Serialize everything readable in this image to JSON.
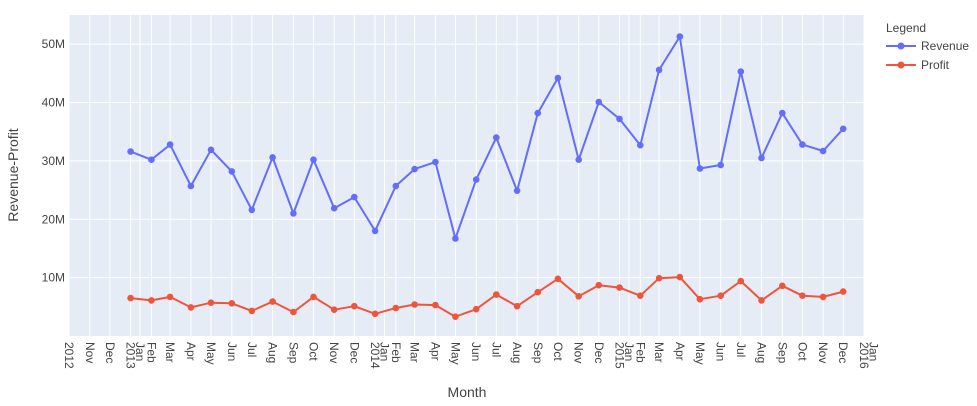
{
  "chart_data": {
    "type": "line",
    "title": "",
    "xlabel": "Month",
    "ylabel": "Revenue-Profit",
    "legend": {
      "title": "Legend",
      "placement": "top-right"
    },
    "x_range": [
      "2012-10-01",
      "2016-01-01"
    ],
    "ylim": [
      0,
      55
    ],
    "y_unit": "M",
    "grid": true,
    "y_ticks": [
      {
        "value": 10,
        "label": "10M"
      },
      {
        "value": 20,
        "label": "20M"
      },
      {
        "value": 30,
        "label": "30M"
      },
      {
        "value": 40,
        "label": "40M"
      },
      {
        "value": 50,
        "label": "50M"
      }
    ],
    "x_ticks": [
      {
        "date": "2012-10-01",
        "label": "2012"
      },
      {
        "date": "2012-11-01",
        "label": "Nov"
      },
      {
        "date": "2012-12-01",
        "label": "Dec"
      },
      {
        "date": "2013-01-01",
        "label": "2013"
      },
      {
        "date": "2013-01-15",
        "label": "Jan"
      },
      {
        "date": "2013-02-01",
        "label": "Feb"
      },
      {
        "date": "2013-03-01",
        "label": "Mar"
      },
      {
        "date": "2013-04-01",
        "label": "Apr"
      },
      {
        "date": "2013-05-01",
        "label": "May"
      },
      {
        "date": "2013-06-01",
        "label": "Jun"
      },
      {
        "date": "2013-07-01",
        "label": "Jul"
      },
      {
        "date": "2013-08-01",
        "label": "Aug"
      },
      {
        "date": "2013-09-01",
        "label": "Sep"
      },
      {
        "date": "2013-10-01",
        "label": "Oct"
      },
      {
        "date": "2013-11-01",
        "label": "Nov"
      },
      {
        "date": "2013-12-01",
        "label": "Dec"
      },
      {
        "date": "2014-01-01",
        "label": "2014"
      },
      {
        "date": "2014-01-15",
        "label": "Jan"
      },
      {
        "date": "2014-02-01",
        "label": "Feb"
      },
      {
        "date": "2014-03-01",
        "label": "Mar"
      },
      {
        "date": "2014-04-01",
        "label": "Apr"
      },
      {
        "date": "2014-05-01",
        "label": "May"
      },
      {
        "date": "2014-06-01",
        "label": "Jun"
      },
      {
        "date": "2014-07-01",
        "label": "Jul"
      },
      {
        "date": "2014-08-01",
        "label": "Aug"
      },
      {
        "date": "2014-09-01",
        "label": "Sep"
      },
      {
        "date": "2014-10-01",
        "label": "Oct"
      },
      {
        "date": "2014-11-01",
        "label": "Nov"
      },
      {
        "date": "2014-12-01",
        "label": "Dec"
      },
      {
        "date": "2015-01-01",
        "label": "2015"
      },
      {
        "date": "2015-01-15",
        "label": "Jan"
      },
      {
        "date": "2015-02-01",
        "label": "Feb"
      },
      {
        "date": "2015-03-01",
        "label": "Mar"
      },
      {
        "date": "2015-04-01",
        "label": "Apr"
      },
      {
        "date": "2015-05-01",
        "label": "May"
      },
      {
        "date": "2015-06-01",
        "label": "Jun"
      },
      {
        "date": "2015-07-01",
        "label": "Jul"
      },
      {
        "date": "2015-08-01",
        "label": "Aug"
      },
      {
        "date": "2015-09-01",
        "label": "Sep"
      },
      {
        "date": "2015-10-01",
        "label": "Oct"
      },
      {
        "date": "2015-11-01",
        "label": "Nov"
      },
      {
        "date": "2015-12-01",
        "label": "Dec"
      },
      {
        "date": "2016-01-01",
        "label": "2016"
      },
      {
        "date": "2016-01-15",
        "label": "Jan"
      }
    ],
    "x": [
      "2013-01-01",
      "2013-02-01",
      "2013-03-01",
      "2013-04-01",
      "2013-05-01",
      "2013-06-01",
      "2013-07-01",
      "2013-08-01",
      "2013-09-01",
      "2013-10-01",
      "2013-11-01",
      "2013-12-01",
      "2014-01-01",
      "2014-02-01",
      "2014-03-01",
      "2014-04-01",
      "2014-05-01",
      "2014-06-01",
      "2014-07-01",
      "2014-08-01",
      "2014-09-01",
      "2014-10-01",
      "2014-11-01",
      "2014-12-01",
      "2015-01-01",
      "2015-02-01",
      "2015-03-01",
      "2015-04-01",
      "2015-05-01",
      "2015-06-01",
      "2015-07-01",
      "2015-08-01",
      "2015-09-01",
      "2015-10-01",
      "2015-11-01",
      "2015-12-01"
    ],
    "series": [
      {
        "name": "Revenue",
        "color": "#636efa",
        "values": [
          31.6,
          30.2,
          32.8,
          25.7,
          31.9,
          28.2,
          21.6,
          30.6,
          21.0,
          30.2,
          21.9,
          23.8,
          18.0,
          25.7,
          28.6,
          29.8,
          16.7,
          26.8,
          34.0,
          24.9,
          38.2,
          44.2,
          30.2,
          40.1,
          37.2,
          32.7,
          45.6,
          51.3,
          28.7,
          29.3,
          45.3,
          30.5,
          38.2,
          32.8,
          31.7,
          35.5
        ]
      },
      {
        "name": "Profit",
        "color": "#ef553b",
        "values": [
          6.5,
          6.1,
          6.7,
          4.9,
          5.7,
          5.6,
          4.3,
          5.9,
          4.1,
          6.7,
          4.5,
          5.1,
          3.8,
          4.8,
          5.4,
          5.3,
          3.3,
          4.6,
          7.1,
          5.1,
          7.5,
          9.8,
          6.8,
          8.7,
          8.3,
          6.9,
          9.9,
          10.1,
          6.3,
          6.9,
          9.4,
          6.1,
          8.6,
          6.9,
          6.7,
          7.6
        ]
      }
    ]
  }
}
